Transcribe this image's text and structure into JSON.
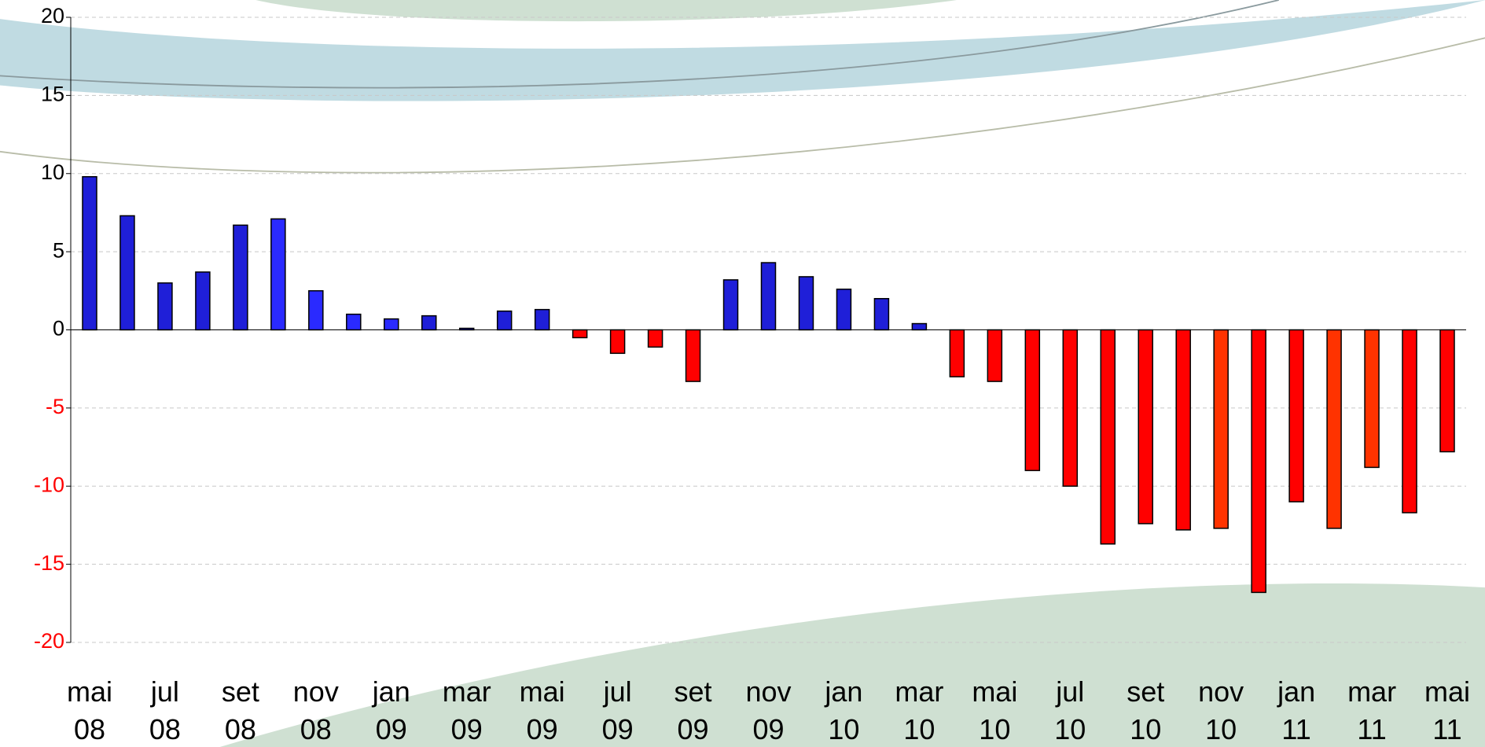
{
  "chart_data": {
    "type": "bar",
    "categories": [
      "mai 08",
      null,
      "jul 08",
      null,
      "set 08",
      null,
      "nov 08",
      null,
      "jan 09",
      null,
      "mar 09",
      null,
      "mai 09",
      null,
      "jul 09",
      null,
      "set 09",
      null,
      "nov 09",
      null,
      "jan 10",
      null,
      "mar 10",
      null,
      "mai 10",
      null,
      "jul 10",
      null,
      "set 10",
      null,
      "nov 10",
      null,
      "jan 11",
      null,
      "mar 11",
      null,
      "mai 11"
    ],
    "values": [
      9.8,
      7.3,
      3.0,
      3.7,
      6.7,
      7.1,
      2.5,
      1.0,
      0.7,
      0.9,
      0.1,
      1.2,
      1.3,
      -0.5,
      -1.5,
      -1.1,
      -3.3,
      3.2,
      4.3,
      3.4,
      2.6,
      2.0,
      0.4,
      -3.0,
      -3.3,
      -9.0,
      -10.0,
      -13.7,
      -12.4,
      -12.8,
      -12.7,
      -16.8,
      -11.0,
      -12.7,
      -8.8,
      -11.7,
      -7.8
    ],
    "colors": [
      "#1f1fd8",
      "#1f1fd8",
      "#1f1fd8",
      "#1f1fd8",
      "#1f1fd8",
      "#2a2aff",
      "#2a2aff",
      "#2a2aff",
      "#2a2aff",
      "#1f1fd8",
      "#1f1fd8",
      "#1f1fd8",
      "#1f1fd8",
      "#ff0000",
      "#ff0000",
      "#ff0000",
      "#ff0000",
      "#1f1fd8",
      "#1f1fd8",
      "#1f1fd8",
      "#1f1fd8",
      "#1f1fd8",
      "#1f1fd8",
      "#ff0000",
      "#ff0000",
      "#ff0000",
      "#ff0000",
      "#ff0000",
      "#ff0000",
      "#ff0000",
      "#ff3300",
      "#ff0000",
      "#ff0000",
      "#ff3300",
      "#ff3300",
      "#ff0000",
      "#ff0000"
    ],
    "ylim": [
      -20,
      20
    ],
    "yticks": [
      -20,
      -15,
      -10,
      -5,
      0,
      5,
      10,
      15,
      20
    ],
    "grid": true,
    "negative_tick_color": "#ff0000"
  }
}
